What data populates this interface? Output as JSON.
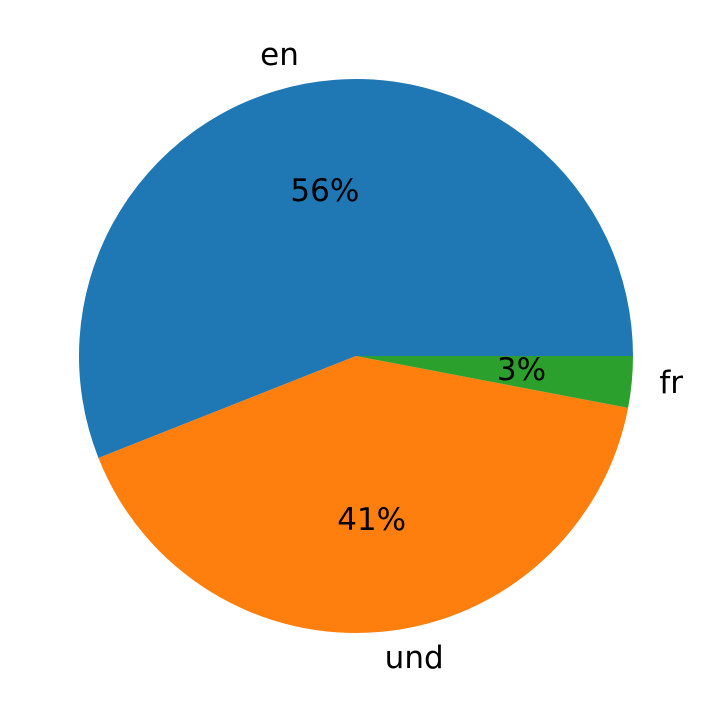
{
  "chart_data": {
    "type": "pie",
    "categories": [
      "en",
      "und",
      "fr"
    ],
    "values": [
      56,
      41,
      3
    ],
    "value_labels": [
      "56%",
      "41%",
      "3%"
    ],
    "colors": [
      "#1f77b4",
      "#ff7f0e",
      "#2ca02c"
    ]
  }
}
